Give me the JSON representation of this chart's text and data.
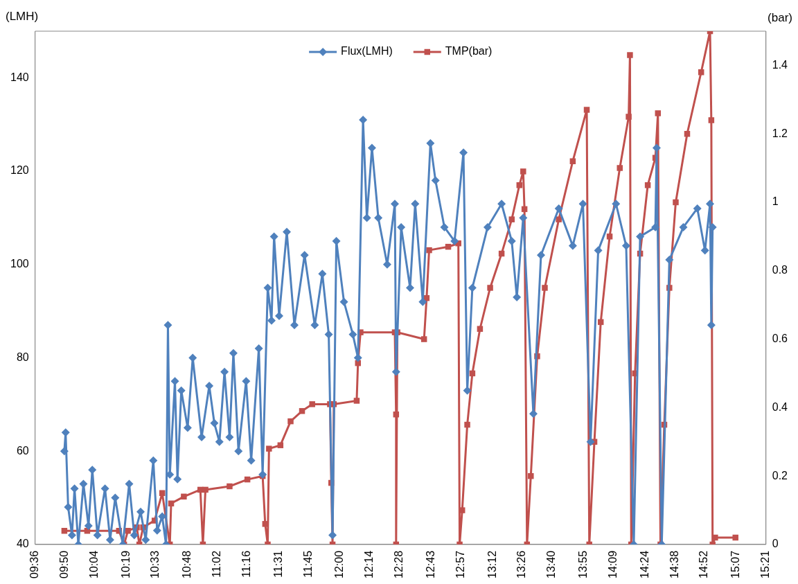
{
  "chart_data": {
    "type": "line",
    "ylabel": "(LMH)",
    "y2label": "(bar)",
    "legend": "top",
    "grid": false,
    "line_style": "solid",
    "xlim": [
      9.6,
      15.35
    ],
    "xticks": [
      {
        "value": 9.6,
        "label": "09:36"
      },
      {
        "value": 9.8333,
        "label": "09:50"
      },
      {
        "value": 10.0667,
        "label": "10:04"
      },
      {
        "value": 10.3167,
        "label": "10:19"
      },
      {
        "value": 10.55,
        "label": "10:33"
      },
      {
        "value": 10.8,
        "label": "10:48"
      },
      {
        "value": 11.0333,
        "label": "11:02"
      },
      {
        "value": 11.2667,
        "label": "11:16"
      },
      {
        "value": 11.5167,
        "label": "11:31"
      },
      {
        "value": 11.75,
        "label": "11:45"
      },
      {
        "value": 12.0,
        "label": "12:00"
      },
      {
        "value": 12.2333,
        "label": "12:14"
      },
      {
        "value": 12.4667,
        "label": "12:28"
      },
      {
        "value": 12.7167,
        "label": "12:43"
      },
      {
        "value": 12.95,
        "label": "12:57"
      },
      {
        "value": 13.2,
        "label": "13:12"
      },
      {
        "value": 13.4333,
        "label": "13:26"
      },
      {
        "value": 13.6667,
        "label": "13:40"
      },
      {
        "value": 13.9167,
        "label": "13:55"
      },
      {
        "value": 14.15,
        "label": "14:09"
      },
      {
        "value": 14.4,
        "label": "14:24"
      },
      {
        "value": 14.6333,
        "label": "14:38"
      },
      {
        "value": 14.8667,
        "label": "14:52"
      },
      {
        "value": 15.1167,
        "label": "15:07"
      },
      {
        "value": 15.35,
        "label": "15:21"
      }
    ],
    "ylim": [
      40,
      150
    ],
    "yticks": [
      40,
      60,
      80,
      100,
      120,
      140
    ],
    "y2lim": [
      0,
      1.5
    ],
    "y2ticks": [
      0,
      0.2,
      0.4,
      0.6,
      0.8,
      1,
      1.2,
      1.4
    ],
    "series": [
      {
        "name": "Flux(LMH)",
        "color": "#4f81bd",
        "marker": "diamond",
        "x": [
          9.83,
          9.84,
          9.86,
          9.89,
          9.91,
          9.94,
          9.98,
          10.02,
          10.05,
          10.09,
          10.15,
          10.19,
          10.23,
          10.29,
          10.34,
          10.38,
          10.43,
          10.47,
          10.53,
          10.56,
          10.6,
          10.63,
          10.645,
          10.66,
          10.7,
          10.72,
          10.75,
          10.8,
          10.84,
          10.91,
          10.97,
          11.01,
          11.05,
          11.09,
          11.13,
          11.16,
          11.2,
          11.26,
          11.3,
          11.36,
          11.39,
          11.43,
          11.46,
          11.48,
          11.52,
          11.58,
          11.64,
          11.72,
          11.8,
          11.86,
          11.91,
          11.94,
          11.97,
          12.03,
          12.1,
          12.14,
          12.18,
          12.21,
          12.25,
          12.3,
          12.37,
          12.43,
          12.44,
          12.48,
          12.55,
          12.59,
          12.65,
          12.71,
          12.75,
          12.82,
          12.9,
          12.97,
          13.0,
          13.04,
          13.16,
          13.27,
          13.35,
          13.39,
          13.44,
          13.52,
          13.58,
          13.72,
          13.83,
          13.91,
          13.97,
          14.03,
          14.17,
          14.25,
          14.31,
          14.36,
          14.48,
          14.49,
          14.53,
          14.59,
          14.7,
          14.81,
          14.87,
          14.91,
          14.92,
          14.93
        ],
        "values": [
          60,
          64,
          48,
          42,
          52,
          40,
          53,
          44,
          56,
          42,
          52,
          41,
          50,
          40,
          53,
          42,
          47,
          41,
          58,
          43,
          46,
          40,
          87,
          55,
          75,
          54,
          73,
          65,
          80,
          63,
          74,
          66,
          62,
          77,
          63,
          81,
          60,
          75,
          58,
          82,
          55,
          95,
          88,
          106,
          89,
          107,
          87,
          102,
          87,
          98,
          85,
          42,
          105,
          92,
          85,
          80,
          131,
          110,
          125,
          110,
          100,
          113,
          77,
          108,
          95,
          113,
          92,
          126,
          118,
          108,
          105,
          124,
          73,
          95,
          108,
          113,
          105,
          93,
          110,
          68,
          102,
          112,
          104,
          113,
          62,
          103,
          113,
          104,
          40,
          106,
          108,
          125,
          40,
          101,
          108,
          112,
          103,
          113,
          87,
          108
        ]
      },
      {
        "name": "TMP(bar)",
        "color": "#c0504d",
        "marker": "square",
        "axis": "y2",
        "x": [
          9.83,
          10.01,
          10.26,
          10.3,
          10.33,
          10.4,
          10.42,
          10.45,
          10.54,
          10.6,
          10.66,
          10.67,
          10.77,
          10.9,
          10.92,
          10.94,
          11.13,
          11.27,
          11.39,
          11.41,
          11.43,
          11.44,
          11.53,
          11.61,
          11.7,
          11.78,
          11.92,
          11.93,
          11.94,
          11.95,
          12.13,
          12.14,
          12.16,
          12.43,
          12.44,
          12.44,
          12.45,
          12.66,
          12.68,
          12.7,
          12.85,
          12.93,
          12.94,
          12.96,
          13.0,
          13.04,
          13.1,
          13.18,
          13.27,
          13.35,
          13.41,
          13.44,
          13.45,
          13.47,
          13.5,
          13.55,
          13.61,
          13.72,
          13.83,
          13.94,
          13.96,
          14.0,
          14.05,
          14.12,
          14.2,
          14.27,
          14.28,
          14.29,
          14.32,
          14.36,
          14.42,
          14.48,
          14.5,
          14.52,
          14.55,
          14.59,
          14.64,
          14.73,
          14.84,
          14.91,
          14.92,
          14.93,
          14.95,
          15.11
        ],
        "values": [
          0.04,
          0.04,
          0.04,
          0,
          0.04,
          0.05,
          0,
          0.05,
          0.07,
          0.15,
          0,
          0.12,
          0.14,
          0.16,
          0,
          0.16,
          0.17,
          0.19,
          0.2,
          0.06,
          0,
          0.28,
          0.29,
          0.36,
          0.39,
          0.41,
          0.41,
          0.18,
          0,
          0.41,
          0.42,
          0.53,
          0.62,
          0.62,
          0.38,
          0,
          0.62,
          0.6,
          0.72,
          0.86,
          0.87,
          0.88,
          0,
          0.1,
          0.35,
          0.5,
          0.63,
          0.75,
          0.85,
          0.95,
          1.05,
          1.09,
          0.98,
          0,
          0.2,
          0.55,
          0.75,
          0.95,
          1.12,
          1.27,
          0,
          0.3,
          0.65,
          0.9,
          1.1,
          1.25,
          1.43,
          0,
          0.5,
          0.85,
          1.05,
          1.13,
          1.26,
          0,
          0.35,
          0.75,
          1.0,
          1.2,
          1.38,
          1.5,
          1.24,
          0,
          0.02,
          0.02
        ]
      }
    ]
  }
}
